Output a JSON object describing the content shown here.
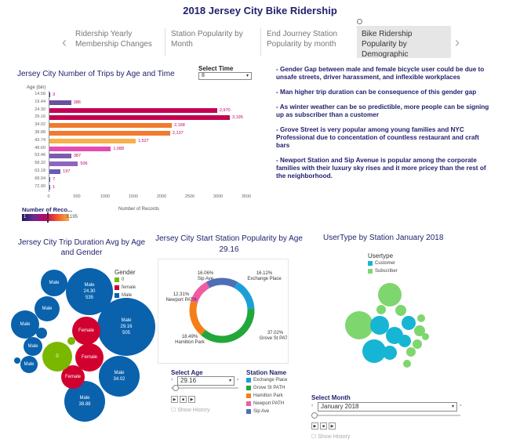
{
  "title": "2018 Jersey City Bike Ridership",
  "tabs": [
    {
      "label": "Ridership Yearly Membership Changes",
      "selected": false
    },
    {
      "label": "Station Popularity by Month",
      "selected": false
    },
    {
      "label": "End Journey Station Popularity by month",
      "selected": false
    },
    {
      "label": "Bike Ridership Popularity by Demographic",
      "selected": true
    }
  ],
  "nav": {
    "prev": "‹",
    "next": "›"
  },
  "trips_chart": {
    "title": "Jersey City Number of Trips by Age and Time",
    "y_axis_label": "Age (bin)",
    "x_axis_label": "Number of Records",
    "x_ticks": [
      "0",
      "500",
      "1000",
      "1500",
      "2000",
      "2500",
      "3000",
      "3500"
    ],
    "legend_title": "Number of Reco...",
    "legend_min": "1",
    "legend_max": "3,195"
  },
  "select_time": {
    "label": "Select Time",
    "value": "8"
  },
  "chart_data": [
    {
      "type": "bar",
      "title": "Jersey City Number of Trips by Age and Time",
      "xlabel": "Number of Records",
      "ylabel": "Age (bin)",
      "xlim": [
        0,
        3500
      ],
      "categories": [
        "14.58",
        "19.44",
        "24.30",
        "29.16",
        "34.02",
        "38.88",
        "43.74",
        "48.60",
        "53.46",
        "58.32",
        "63.18",
        "68.04",
        "72.90"
      ],
      "values": [
        3,
        386,
        2970,
        3195,
        2168,
        2137,
        1527,
        1088,
        387,
        506,
        197,
        7,
        1
      ],
      "value_labels": [
        "3",
        "386",
        "2,970",
        "3,195",
        "2,168",
        "2,137",
        "1,527",
        "1,088",
        "387",
        "506",
        "197",
        "7",
        "1"
      ],
      "colors": [
        "#3a2d7a",
        "#6b4fa0",
        "#c40055",
        "#c20050",
        "#f07a2e",
        "#f07a2e",
        "#f7b04a",
        "#e64ab3",
        "#7a5bb0",
        "#8d66c0",
        "#6a5ab8",
        "#5a4fa8",
        "#4a4a9a"
      ]
    },
    {
      "type": "pie",
      "title": "Jersey City Start Station Popularity by Age  29.16",
      "categories": [
        "Sip Ave",
        "Exchange Place",
        "Grove St PATH",
        "Hamilton Park",
        "Newport PATH"
      ],
      "values": [
        16.06,
        16.12,
        37.02,
        18.49,
        12.31
      ],
      "labels": [
        "16.06%",
        "16.12%",
        "37.02%",
        "18.49%",
        "12.31%"
      ],
      "colors": [
        "#4e6fb5",
        "#1aa0d6",
        "#22a73a",
        "#f57f17",
        "#f05ba1"
      ]
    }
  ],
  "notes": [
    "- Gender Gap between male and female bicycle user could be due  to unsafe streets, driver harassment, and inflexible workplaces",
    "- Man higher trip duration can be consequence of this gender gap",
    "- As winter weather can be so predictible, more people can be signing up as subscriber than a customer",
    "- Grove Street is very popular among young families  and NYC Professional due to concentation of countless restaurant and craft bars",
    "- Newport Station and Sip Avenue  is popular among the corporate families with their luxury  sky rises and it more pricey than the rest of the neighborhood."
  ],
  "duration_chart": {
    "title": "Jersey City Trip Duration Avg by Age and Gender",
    "legend_title": "Gender",
    "legend": [
      {
        "label": "0",
        "color": "#7ab800"
      },
      {
        "label": "female",
        "color": "#d2002f"
      },
      {
        "label": "Male",
        "color": "#0a62ad"
      }
    ],
    "bubbles": [
      {
        "label": "Male",
        "value": "24.30",
        "extra": "535"
      },
      {
        "label": "Male",
        "value": "29.16",
        "extra": "505"
      },
      {
        "label": "Male",
        "value": "34.02",
        "extra": ""
      },
      {
        "label": "Male",
        "value": "38.88",
        "extra": ""
      },
      {
        "label": "Female",
        "value": "",
        "extra": ""
      },
      {
        "label": "Female",
        "value": "",
        "extra": ""
      },
      {
        "label": "Female",
        "value": "",
        "extra": ""
      },
      {
        "label": "0",
        "value": "",
        "extra": ""
      },
      {
        "label": "Male",
        "value": "",
        "extra": ""
      },
      {
        "label": "Male",
        "value": "",
        "extra": ""
      },
      {
        "label": "Male",
        "value": "",
        "extra": ""
      },
      {
        "label": "Male",
        "value": "",
        "extra": ""
      },
      {
        "label": "Male",
        "value": "",
        "extra": ""
      }
    ]
  },
  "station_chart": {
    "title": "Jersey City Start Station Popularity by Age  29.16"
  },
  "select_age": {
    "label": "Select Age",
    "value": "29.16",
    "show_history": "Show History"
  },
  "station_legend": {
    "title": "Station Name",
    "items": [
      {
        "label": "Exchange Place",
        "color": "#1aa0d6"
      },
      {
        "label": "Grove St PATH",
        "color": "#22a73a"
      },
      {
        "label": "Hamilton Park",
        "color": "#f57f17"
      },
      {
        "label": "Newport PATH",
        "color": "#f05ba1"
      },
      {
        "label": "Sip Ave",
        "color": "#4e6fb5"
      }
    ]
  },
  "usertype_chart": {
    "title": "UserType  by Station  January 2018",
    "legend_title": "Usertype",
    "legend": [
      {
        "label": "Customer",
        "color": "#17b5d4"
      },
      {
        "label": "Subscriber",
        "color": "#7ed66f"
      }
    ]
  },
  "select_month": {
    "label": "Select Month",
    "value": "January 2018",
    "show_history": "Show History"
  }
}
